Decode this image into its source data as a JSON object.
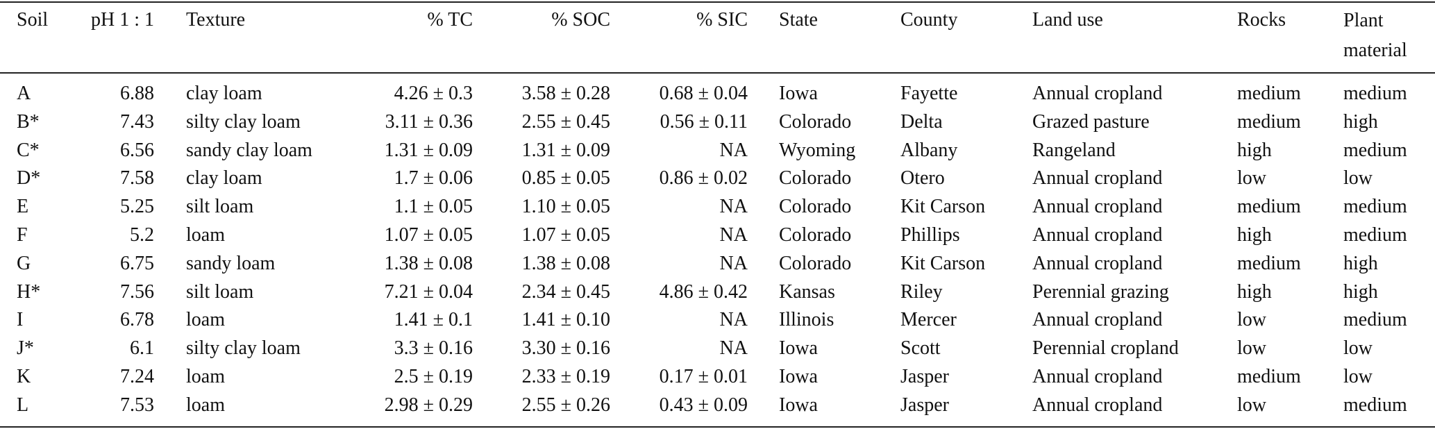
{
  "table": {
    "header": [
      "Soil",
      "pH 1 : 1",
      "Texture",
      "% TC",
      "% SOC",
      "% SIC",
      "State",
      "County",
      "Land use",
      "Rocks",
      "Plant material"
    ],
    "rows": [
      [
        "A",
        "6.88",
        "clay loam",
        "4.26 ± 0.3",
        "3.58 ± 0.28",
        "0.68 ± 0.04",
        "Iowa",
        "Fayette",
        "Annual cropland",
        "medium",
        "medium"
      ],
      [
        "B*",
        "7.43",
        "silty clay loam",
        "3.11 ± 0.36",
        "2.55 ± 0.45",
        "0.56 ± 0.11",
        "Colorado",
        "Delta",
        "Grazed pasture",
        "medium",
        "high"
      ],
      [
        "C*",
        "6.56",
        "sandy clay loam",
        "1.31 ± 0.09",
        "1.31 ± 0.09",
        "NA",
        "Wyoming",
        "Albany",
        "Rangeland",
        "high",
        "medium"
      ],
      [
        "D*",
        "7.58",
        "clay loam",
        "1.7 ± 0.06",
        "0.85 ± 0.05",
        "0.86 ± 0.02",
        "Colorado",
        "Otero",
        "Annual cropland",
        "low",
        "low"
      ],
      [
        "E",
        "5.25",
        "silt loam",
        "1.1 ± 0.05",
        "1.10 ± 0.05",
        "NA",
        "Colorado",
        "Kit Carson",
        "Annual cropland",
        "medium",
        "medium"
      ],
      [
        "F",
        "5.2",
        "loam",
        "1.07 ± 0.05",
        "1.07 ± 0.05",
        "NA",
        "Colorado",
        "Phillips",
        "Annual cropland",
        "high",
        "medium"
      ],
      [
        "G",
        "6.75",
        "sandy loam",
        "1.38 ± 0.08",
        "1.38 ± 0.08",
        "NA",
        "Colorado",
        "Kit Carson",
        "Annual cropland",
        "medium",
        "high"
      ],
      [
        "H*",
        "7.56",
        "silt loam",
        "7.21 ± 0.04",
        "2.34 ± 0.45",
        "4.86 ± 0.42",
        "Kansas",
        "Riley",
        "Perennial grazing",
        "high",
        "high"
      ],
      [
        "I",
        "6.78",
        "loam",
        "1.41 ± 0.1",
        "1.41 ± 0.10",
        "NA",
        "Illinois",
        "Mercer",
        "Annual cropland",
        "low",
        "medium"
      ],
      [
        "J*",
        "6.1",
        "silty clay loam",
        "3.3 ± 0.16",
        "3.30 ± 0.16",
        "NA",
        "Iowa",
        "Scott",
        "Perennial cropland",
        "low",
        "low"
      ],
      [
        "K",
        "7.24",
        "loam",
        "2.5 ± 0.19",
        "2.33 ± 0.19",
        "0.17 ± 0.01",
        "Iowa",
        "Jasper",
        "Annual cropland",
        "medium",
        "low"
      ],
      [
        "L",
        "7.53",
        "loam",
        "2.98 ± 0.29",
        "2.55 ± 0.26",
        "0.43 ± 0.09",
        "Iowa",
        "Jasper",
        "Annual cropland",
        "low",
        "medium"
      ]
    ]
  }
}
